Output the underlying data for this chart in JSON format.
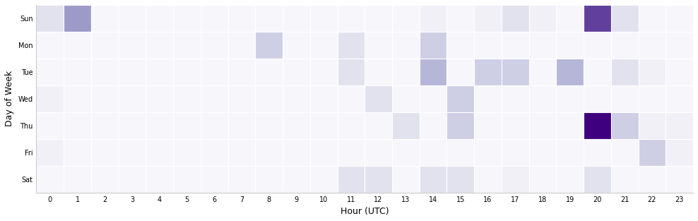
{
  "days": [
    "Sun",
    "Mon",
    "Tue",
    "Wed",
    "Thu",
    "Fri",
    "Sat"
  ],
  "hours": 24,
  "xlabel": "Hour (UTC)",
  "ylabel": "Day of Week",
  "colormap": "Purples",
  "heatmap": [
    [
      2,
      5,
      0,
      0,
      0,
      0,
      0,
      0,
      0,
      0,
      0,
      0,
      0,
      0,
      1,
      0,
      1,
      2,
      1,
      0,
      8,
      2,
      0,
      0
    ],
    [
      0,
      0,
      0,
      0,
      0,
      0,
      0,
      0,
      3,
      0,
      0,
      2,
      0,
      0,
      3,
      0,
      0,
      0,
      0,
      0,
      0,
      0,
      0,
      0
    ],
    [
      0,
      0,
      0,
      0,
      0,
      0,
      0,
      0,
      0,
      0,
      0,
      2,
      0,
      0,
      4,
      0,
      3,
      3,
      0,
      4,
      0,
      2,
      1,
      0
    ],
    [
      1,
      0,
      0,
      0,
      0,
      0,
      0,
      0,
      0,
      0,
      0,
      0,
      2,
      0,
      0,
      3,
      0,
      0,
      0,
      0,
      0,
      0,
      0,
      0
    ],
    [
      0,
      0,
      0,
      0,
      0,
      0,
      0,
      0,
      0,
      0,
      0,
      0,
      0,
      2,
      0,
      3,
      0,
      0,
      0,
      0,
      10,
      3,
      1,
      1
    ],
    [
      1,
      0,
      0,
      0,
      0,
      0,
      0,
      0,
      0,
      0,
      0,
      0,
      0,
      0,
      0,
      0,
      0,
      0,
      0,
      0,
      0,
      0,
      3,
      1
    ],
    [
      0,
      0,
      0,
      0,
      0,
      0,
      0,
      0,
      0,
      0,
      0,
      2,
      2,
      0,
      2,
      2,
      0,
      1,
      0,
      0,
      2,
      0,
      0,
      0
    ]
  ],
  "figsize": [
    9.88,
    3.13
  ],
  "dpi": 100,
  "bg_color": "#f7f7fb",
  "cell_edge_color": "white"
}
